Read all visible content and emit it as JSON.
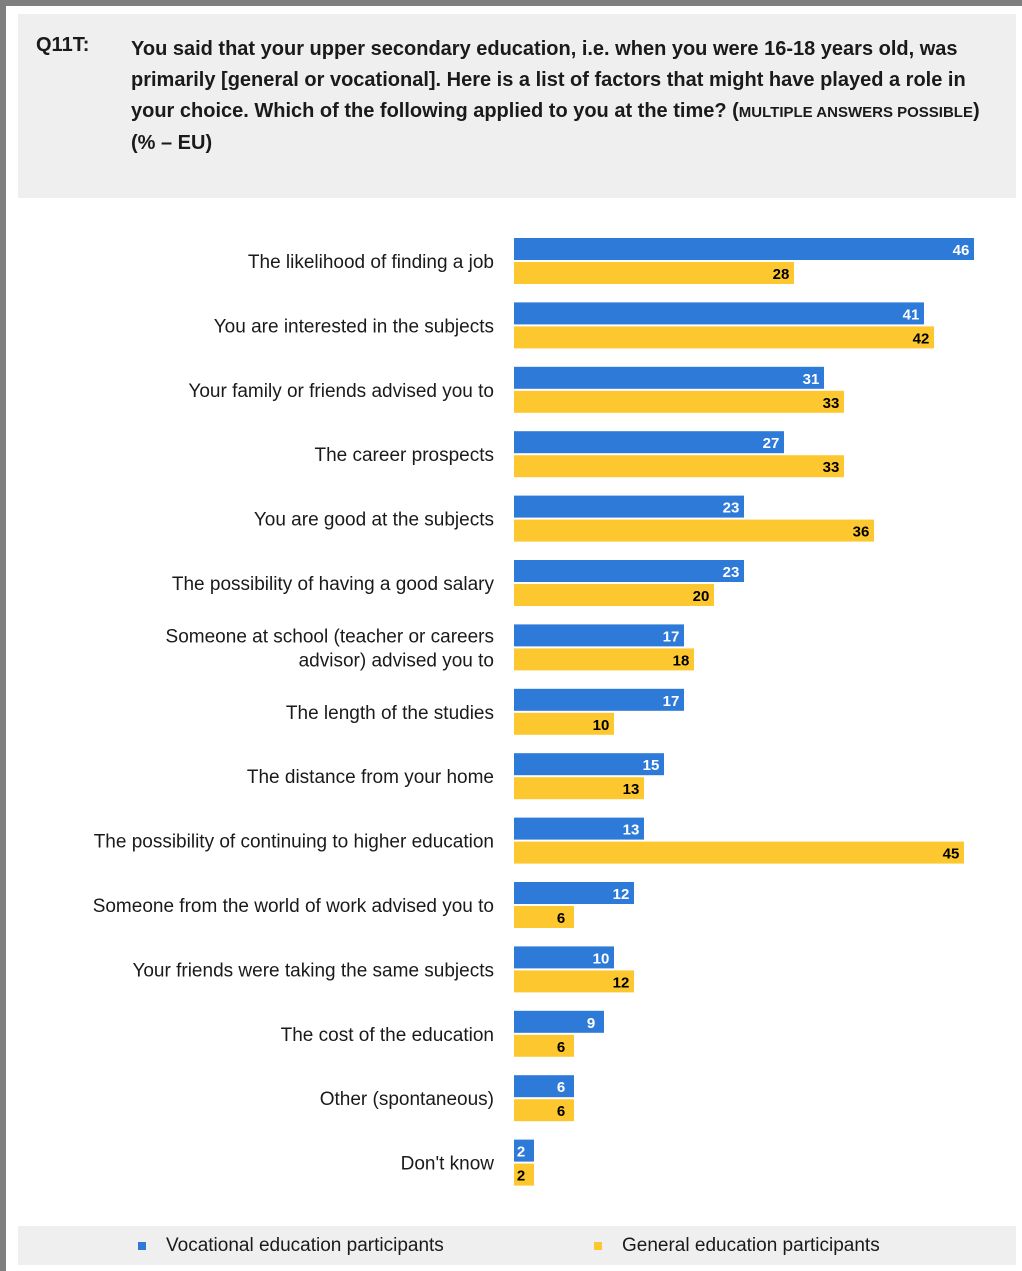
{
  "question": {
    "code": "Q11T:",
    "text_main": "You said that your upper secondary education, i.e. when you were 16-18 years old, was primarily [general or vocational]. Here is a list of factors that might have played a role in your choice. Which of  the following applied to you at the time? (",
    "text_smallcaps": "MULTIPLE ANSWERS POSSIBLE",
    "text_end": ") (% – EU)"
  },
  "colors": {
    "vocational": "#2e7ad8",
    "general": "#fdc82f",
    "vocational_label": "#ffffff",
    "general_label": "#000000"
  },
  "legend": {
    "vocational": "Vocational education participants",
    "general": "General education participants"
  },
  "chart_data": {
    "type": "bar",
    "orientation": "horizontal",
    "categories": [
      [
        "The likelihood of finding a job"
      ],
      [
        "You are interested in the subjects"
      ],
      [
        "Your family or friends advised you to"
      ],
      [
        "The career prospects"
      ],
      [
        "You are good at the subjects"
      ],
      [
        "The possibility of having a good salary"
      ],
      [
        "Someone at school (teacher or careers",
        "advisor) advised you to"
      ],
      [
        "The length of the studies"
      ],
      [
        "The distance from your home"
      ],
      [
        "The possibility of continuing to higher education"
      ],
      [
        "Someone from the world of work advised you to"
      ],
      [
        "Your friends were taking the same subjects"
      ],
      [
        "The cost of the education"
      ],
      [
        "Other (spontaneous)"
      ],
      [
        "Don't know"
      ]
    ],
    "series": [
      {
        "name": "Vocational education participants",
        "values": [
          46,
          41,
          31,
          27,
          23,
          23,
          17,
          17,
          15,
          13,
          12,
          10,
          9,
          6,
          2
        ]
      },
      {
        "name": "General education participants",
        "values": [
          28,
          42,
          33,
          33,
          36,
          20,
          18,
          10,
          13,
          45,
          6,
          12,
          6,
          6,
          2
        ]
      }
    ],
    "xlim": [
      0,
      46
    ],
    "legend_position": "bottom"
  }
}
